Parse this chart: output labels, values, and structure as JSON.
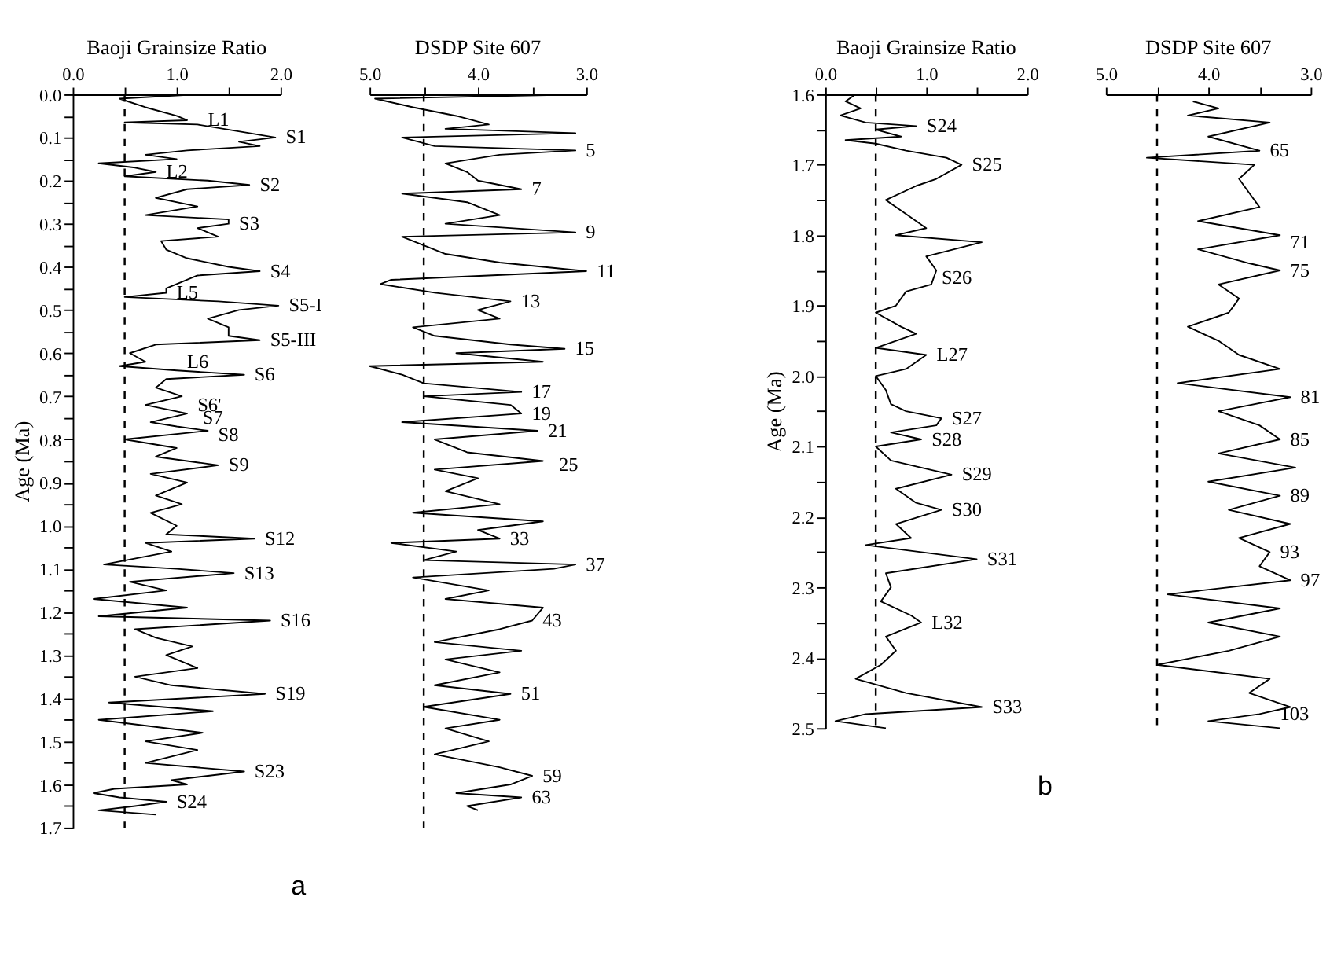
{
  "chart_data": [
    {
      "type": "line",
      "orientation": "horizontal",
      "title": "Baoji Grainsize Ratio",
      "ylabel": "Age (Ma)",
      "line_style": "solid",
      "grid": false,
      "xlim": [
        0,
        2
      ],
      "xticks": [
        {
          "value": 0,
          "label": "0.0"
        },
        {
          "value": 0.5,
          "label": null
        },
        {
          "value": 1,
          "label": "1.0"
        },
        {
          "value": 1.5,
          "label": null
        },
        {
          "value": 2,
          "label": "2.0"
        }
      ],
      "ylim": [
        1.7,
        0
      ],
      "yticks": [
        {
          "value": 0,
          "label": "0.0"
        },
        {
          "value": 0.05,
          "label": null
        },
        0.1,
        {
          "value": 0.15,
          "label": null
        },
        0.2,
        {
          "value": 0.25,
          "label": null
        },
        0.3,
        {
          "value": 0.35,
          "label": null
        },
        0.4,
        {
          "value": 0.45,
          "label": null
        },
        0.5,
        {
          "value": 0.55,
          "label": null
        },
        0.6,
        {
          "value": 0.65,
          "label": null
        },
        0.7,
        {
          "value": 0.75,
          "label": null
        },
        0.8,
        {
          "value": 0.85,
          "label": null
        },
        0.9,
        {
          "value": 0.95,
          "label": null
        },
        {
          "value": 1,
          "label": "1.0"
        },
        {
          "value": 1.05,
          "label": null
        },
        1.1,
        {
          "value": 1.15,
          "label": null
        },
        1.2,
        {
          "value": 1.25,
          "label": null
        },
        1.3,
        {
          "value": 1.35,
          "label": null
        },
        1.4,
        {
          "value": 1.45,
          "label": null
        },
        1.5,
        {
          "value": 1.55,
          "label": null
        },
        1.6,
        {
          "value": 1.65,
          "label": null
        },
        1.7
      ],
      "series": [
        {
          "color": "#000000",
          "x": [
            0.0,
            0.01,
            0.03,
            0.05,
            0.06,
            0.065,
            0.07,
            0.09,
            0.1,
            0.11,
            0.12,
            0.13,
            0.14,
            0.15,
            0.16,
            0.17,
            0.18,
            0.19,
            0.2,
            0.21,
            0.22,
            0.24,
            0.26,
            0.28,
            0.29,
            0.3,
            0.31,
            0.33,
            0.34,
            0.36,
            0.38,
            0.4,
            0.41,
            0.42,
            0.44,
            0.45,
            0.46,
            0.47,
            0.48,
            0.49,
            0.5,
            0.52,
            0.54,
            0.56,
            0.57,
            0.58,
            0.6,
            0.62,
            0.63,
            0.64,
            0.65,
            0.66,
            0.68,
            0.7,
            0.72,
            0.74,
            0.76,
            0.77,
            0.78,
            0.8,
            0.82,
            0.84,
            0.86,
            0.88,
            0.9,
            0.93,
            0.95,
            0.97,
            1.0,
            1.02,
            1.03,
            1.04,
            1.06,
            1.09,
            1.1,
            1.11,
            1.13,
            1.15,
            1.17,
            1.19,
            1.21,
            1.22,
            1.24,
            1.26,
            1.28,
            1.3,
            1.33,
            1.35,
            1.37,
            1.39,
            1.41,
            1.43,
            1.45,
            1.48,
            1.5,
            1.52,
            1.55,
            1.57,
            1.59,
            1.6,
            1.61,
            1.62,
            1.63,
            1.64,
            1.65,
            1.66,
            1.67
          ],
          "values": [
            1.2,
            0.45,
            0.7,
            1.0,
            1.1,
            0.5,
            1.2,
            1.7,
            1.95,
            1.6,
            1.8,
            1.1,
            0.7,
            1.0,
            0.25,
            0.6,
            0.8,
            0.5,
            1.3,
            1.7,
            1.1,
            0.8,
            1.2,
            0.7,
            1.5,
            1.5,
            1.2,
            1.4,
            0.85,
            0.9,
            1.1,
            1.5,
            1.8,
            1.2,
            1.0,
            0.9,
            0.9,
            0.5,
            1.4,
            1.98,
            1.6,
            1.3,
            1.5,
            1.5,
            1.8,
            0.8,
            0.55,
            0.7,
            0.45,
            1.0,
            1.65,
            0.9,
            0.8,
            1.05,
            0.7,
            1.1,
            0.75,
            1.0,
            1.3,
            0.5,
            1.0,
            0.8,
            1.4,
            0.75,
            1.1,
            0.8,
            1.05,
            0.75,
            1.0,
            0.9,
            1.75,
            0.7,
            0.95,
            0.3,
            1.0,
            1.55,
            0.55,
            0.9,
            0.2,
            1.1,
            0.25,
            1.9,
            0.6,
            0.8,
            1.15,
            0.9,
            1.2,
            0.6,
            0.95,
            1.85,
            0.35,
            1.35,
            0.25,
            1.25,
            0.7,
            1.2,
            0.7,
            1.65,
            0.95,
            1.1,
            0.4,
            0.2,
            0.45,
            0.9,
            0.6,
            0.25,
            0.8
          ]
        }
      ],
      "ref_lines": [
        {
          "axis": "x",
          "value": 0.5,
          "color": "#000000",
          "line_style": "dashed"
        }
      ],
      "annotations": [
        {
          "text": "L1",
          "x": 1.2,
          "y": 0.06
        },
        {
          "text": "S1",
          "x": 1.95,
          "y": 0.1
        },
        {
          "text": "L2",
          "x": 0.8,
          "y": 0.18
        },
        {
          "text": "S2",
          "x": 1.7,
          "y": 0.21
        },
        {
          "text": "S3",
          "x": 1.5,
          "y": 0.3
        },
        {
          "text": "S4",
          "x": 1.8,
          "y": 0.41
        },
        {
          "text": "L5",
          "x": 0.9,
          "y": 0.46
        },
        {
          "text": "S5-I",
          "x": 1.98,
          "y": 0.49
        },
        {
          "text": "S5-III",
          "x": 1.8,
          "y": 0.57
        },
        {
          "text": "L6",
          "x": 1.0,
          "y": 0.62
        },
        {
          "text": "S6",
          "x": 1.65,
          "y": 0.65
        },
        {
          "text": "S6'",
          "x": 1.1,
          "y": 0.72
        },
        {
          "text": "S7",
          "x": 1.15,
          "y": 0.75
        },
        {
          "text": "S8",
          "x": 1.3,
          "y": 0.79
        },
        {
          "text": "S9",
          "x": 1.4,
          "y": 0.86
        },
        {
          "text": "S12",
          "x": 1.75,
          "y": 1.03
        },
        {
          "text": "S13",
          "x": 1.55,
          "y": 1.11
        },
        {
          "text": "S16",
          "x": 1.9,
          "y": 1.22
        },
        {
          "text": "S19",
          "x": 1.85,
          "y": 1.39
        },
        {
          "text": "S23",
          "x": 1.65,
          "y": 1.57
        },
        {
          "text": "S24",
          "x": 0.9,
          "y": 1.64
        },
        "a"
      ]
    },
    {
      "type": "line",
      "orientation": "horizontal",
      "title": "DSDP Site 607",
      "line_style": "solid",
      "grid": false,
      "tick_labels": "x",
      "xlim": [
        5,
        3
      ],
      "xticks": [
        {
          "value": 5,
          "label": "5.0"
        },
        {
          "value": 4.5,
          "label": null
        },
        {
          "value": 4,
          "label": "4.0"
        },
        {
          "value": 3.5,
          "label": null
        },
        {
          "value": 3,
          "label": "3.0"
        }
      ],
      "ylim": [
        1.7,
        0
      ],
      "series": [
        {
          "color": "#000000",
          "x": [
            0.0,
            0.01,
            0.03,
            0.05,
            0.07,
            0.08,
            0.09,
            0.1,
            0.12,
            0.13,
            0.14,
            0.16,
            0.18,
            0.2,
            0.22,
            0.23,
            0.25,
            0.28,
            0.3,
            0.32,
            0.33,
            0.35,
            0.37,
            0.39,
            0.41,
            0.43,
            0.44,
            0.46,
            0.48,
            0.5,
            0.52,
            0.54,
            0.56,
            0.58,
            0.59,
            0.6,
            0.62,
            0.63,
            0.65,
            0.67,
            0.69,
            0.7,
            0.72,
            0.74,
            0.76,
            0.78,
            0.8,
            0.83,
            0.85,
            0.87,
            0.89,
            0.92,
            0.95,
            0.97,
            0.99,
            1.01,
            1.03,
            1.04,
            1.06,
            1.08,
            1.09,
            1.1,
            1.12,
            1.15,
            1.17,
            1.19,
            1.22,
            1.24,
            1.27,
            1.29,
            1.31,
            1.34,
            1.37,
            1.39,
            1.42,
            1.45,
            1.47,
            1.5,
            1.53,
            1.56,
            1.58,
            1.6,
            1.62,
            1.63,
            1.65,
            1.66
          ],
          "values": [
            3.0,
            4.95,
            4.6,
            4.2,
            3.9,
            4.3,
            3.1,
            4.7,
            4.4,
            3.1,
            3.8,
            4.3,
            4.1,
            4.0,
            3.6,
            4.7,
            4.1,
            3.8,
            4.3,
            3.1,
            4.7,
            4.5,
            4.3,
            3.8,
            3.0,
            4.8,
            4.9,
            4.4,
            3.7,
            4.0,
            3.8,
            4.6,
            4.4,
            3.7,
            3.2,
            4.2,
            3.4,
            5.0,
            4.7,
            4.5,
            3.6,
            4.5,
            3.7,
            3.6,
            4.7,
            3.45,
            4.4,
            4.1,
            3.4,
            4.4,
            4.0,
            4.3,
            3.8,
            4.6,
            3.4,
            4.0,
            3.8,
            4.8,
            4.2,
            4.5,
            3.1,
            3.3,
            4.6,
            3.9,
            4.3,
            3.4,
            3.5,
            3.8,
            4.4,
            3.6,
            4.3,
            3.8,
            4.4,
            3.7,
            4.5,
            3.8,
            4.3,
            3.9,
            4.4,
            3.8,
            3.5,
            3.7,
            4.2,
            3.6,
            4.1,
            4.0
          ]
        }
      ],
      "ref_lines": [
        {
          "axis": "x",
          "value": 4.5,
          "color": "#000000",
          "line_style": "dashed"
        }
      ],
      "annotations": [
        {
          "text": "5",
          "x": 3.1,
          "y": 0.13
        },
        {
          "text": "7",
          "x": 3.6,
          "y": 0.22
        },
        {
          "text": "9",
          "x": 3.1,
          "y": 0.32
        },
        {
          "text": "11",
          "x": 3.0,
          "y": 0.41
        },
        {
          "text": "13",
          "x": 3.7,
          "y": 0.48
        },
        {
          "text": "15",
          "x": 3.2,
          "y": 0.59
        },
        {
          "text": "17",
          "x": 3.6,
          "y": 0.69
        },
        {
          "text": "19",
          "x": 3.6,
          "y": 0.74
        },
        {
          "text": "21",
          "x": 3.45,
          "y": 0.78
        },
        {
          "text": "25",
          "x": 3.35,
          "y": 0.86
        },
        {
          "text": "33",
          "x": 3.8,
          "y": 1.03
        },
        {
          "text": "37",
          "x": 3.1,
          "y": 1.09
        },
        {
          "text": "43",
          "x": 3.5,
          "y": 1.22
        },
        {
          "text": "51",
          "x": 3.7,
          "y": 1.39
        },
        {
          "text": "59",
          "x": 3.5,
          "y": 1.58
        },
        {
          "text": "63",
          "x": 3.6,
          "y": 1.63
        }
      ]
    },
    {
      "type": "line",
      "orientation": "horizontal",
      "title": "Baoji Grainsize Ratio",
      "ylabel": "Age (Ma)",
      "line_style": "solid",
      "grid": false,
      "xlim": [
        0,
        2
      ],
      "xticks": [
        {
          "value": 0,
          "label": "0.0"
        },
        {
          "value": 0.5,
          "label": null
        },
        {
          "value": 1,
          "label": "1.0"
        },
        {
          "value": 1.5,
          "label": null
        },
        {
          "value": 2,
          "label": "2.0"
        }
      ],
      "ylim": [
        2.5,
        1.6
      ],
      "yticks": [
        1.6,
        {
          "value": 1.65,
          "label": null
        },
        1.7,
        {
          "value": 1.75,
          "label": null
        },
        1.8,
        {
          "value": 1.85,
          "label": null
        },
        1.9,
        {
          "value": 1.95,
          "label": null
        },
        {
          "value": 2,
          "label": "2.0"
        },
        {
          "value": 2.05,
          "label": null
        },
        2.1,
        {
          "value": 2.15,
          "label": null
        },
        2.2,
        {
          "value": 2.25,
          "label": null
        },
        2.3,
        {
          "value": 2.35,
          "label": null
        },
        2.4,
        {
          "value": 2.45,
          "label": null
        },
        2.5
      ],
      "series": [
        {
          "color": "#000000",
          "x": [
            1.6,
            1.61,
            1.62,
            1.63,
            1.64,
            1.645,
            1.65,
            1.66,
            1.665,
            1.67,
            1.68,
            1.69,
            1.7,
            1.72,
            1.73,
            1.75,
            1.77,
            1.79,
            1.8,
            1.81,
            1.83,
            1.85,
            1.87,
            1.88,
            1.9,
            1.91,
            1.93,
            1.94,
            1.96,
            1.97,
            1.99,
            2.0,
            2.02,
            2.04,
            2.05,
            2.06,
            2.07,
            2.08,
            2.09,
            2.1,
            2.12,
            2.14,
            2.16,
            2.18,
            2.19,
            2.21,
            2.23,
            2.24,
            2.26,
            2.28,
            2.3,
            2.32,
            2.34,
            2.35,
            2.37,
            2.39,
            2.41,
            2.43,
            2.45,
            2.47,
            2.48,
            2.49,
            2.5
          ],
          "values": [
            0.3,
            0.2,
            0.35,
            0.15,
            0.4,
            0.9,
            0.5,
            0.75,
            0.2,
            0.5,
            0.8,
            1.2,
            1.35,
            1.1,
            0.9,
            0.6,
            0.8,
            1.0,
            0.7,
            1.55,
            1.0,
            1.1,
            1.05,
            0.8,
            0.7,
            0.5,
            0.75,
            0.9,
            0.5,
            1.0,
            0.8,
            0.5,
            0.6,
            0.65,
            0.8,
            1.15,
            1.1,
            0.65,
            0.95,
            0.5,
            0.65,
            1.25,
            0.7,
            0.9,
            1.15,
            0.7,
            0.85,
            0.4,
            1.5,
            0.6,
            0.65,
            0.55,
            0.85,
            0.95,
            0.6,
            0.7,
            0.55,
            0.3,
            0.8,
            1.55,
            0.4,
            0.1,
            0.6
          ]
        }
      ],
      "ref_lines": [
        {
          "axis": "x",
          "value": 0.5,
          "color": "#000000",
          "line_style": "dashed"
        }
      ],
      "annotations": [
        {
          "text": "S24",
          "x": 0.9,
          "y": 1.645
        },
        {
          "text": "S25",
          "x": 1.35,
          "y": 1.7
        },
        {
          "text": "S26",
          "x": 1.05,
          "y": 1.86
        },
        {
          "text": "L27",
          "x": 1.0,
          "y": 1.97
        },
        {
          "text": "S27",
          "x": 1.15,
          "y": 2.06
        },
        {
          "text": "S28",
          "x": 0.95,
          "y": 2.09
        },
        {
          "text": "S29",
          "x": 1.25,
          "y": 2.14
        },
        {
          "text": "S30",
          "x": 1.15,
          "y": 2.19
        },
        {
          "text": "S31",
          "x": 1.5,
          "y": 2.26
        },
        {
          "text": "L32",
          "x": 0.95,
          "y": 2.35
        },
        {
          "text": "S33",
          "x": 1.55,
          "y": 2.47
        },
        "b"
      ]
    },
    {
      "type": "line",
      "orientation": "horizontal",
      "title": "DSDP Site 607",
      "line_style": "solid",
      "grid": false,
      "tick_labels": "x",
      "xlim": [
        5,
        3
      ],
      "xticks": [
        {
          "value": 5,
          "label": "5.0"
        },
        {
          "value": 4.5,
          "label": null
        },
        {
          "value": 4,
          "label": "4.0"
        },
        {
          "value": 3.5,
          "label": null
        },
        {
          "value": 3,
          "label": "3.0"
        }
      ],
      "ylim": [
        2.5,
        1.6
      ],
      "series": [
        {
          "color": "#000000",
          "x": [
            1.61,
            1.62,
            1.63,
            1.64,
            1.66,
            1.68,
            1.69,
            1.7,
            1.72,
            1.74,
            1.76,
            1.78,
            1.8,
            1.82,
            1.84,
            1.85,
            1.87,
            1.89,
            1.91,
            1.93,
            1.95,
            1.97,
            1.99,
            2.01,
            2.03,
            2.05,
            2.07,
            2.09,
            2.11,
            2.13,
            2.15,
            2.17,
            2.19,
            2.21,
            2.23,
            2.25,
            2.27,
            2.29,
            2.31,
            2.33,
            2.35,
            2.37,
            2.39,
            2.41,
            2.43,
            2.45,
            2.47,
            2.48,
            2.49,
            2.5
          ],
          "values": [
            4.15,
            3.9,
            4.2,
            3.4,
            4.0,
            3.5,
            4.6,
            3.55,
            3.7,
            3.6,
            3.5,
            4.1,
            3.3,
            4.1,
            3.6,
            3.3,
            3.9,
            3.7,
            3.8,
            4.2,
            3.9,
            3.7,
            3.3,
            4.3,
            3.2,
            3.9,
            3.5,
            3.3,
            3.9,
            3.15,
            4.0,
            3.3,
            3.8,
            3.2,
            3.7,
            3.4,
            3.5,
            3.2,
            4.4,
            3.3,
            4.0,
            3.3,
            3.8,
            4.5,
            3.4,
            3.6,
            3.2,
            3.5,
            4.0,
            3.3
          ]
        }
      ],
      "ref_lines": [
        {
          "axis": "x",
          "value": 4.5,
          "color": "#000000",
          "line_style": "dashed"
        }
      ],
      "annotations": [
        {
          "text": "65",
          "x": 3.5,
          "y": 1.68
        },
        {
          "text": "71",
          "x": 3.3,
          "y": 1.81
        },
        {
          "text": "75",
          "x": 3.3,
          "y": 1.85
        },
        {
          "text": "81",
          "x": 3.2,
          "y": 2.03
        },
        {
          "text": "85",
          "x": 3.3,
          "y": 2.09
        },
        {
          "text": "89",
          "x": 3.3,
          "y": 2.17
        },
        {
          "text": "93",
          "x": 3.4,
          "y": 2.25
        },
        {
          "text": "97",
          "x": 3.2,
          "y": 2.29
        },
        {
          "text": "103",
          "x": 3.4,
          "y": 2.48
        }
      ]
    }
  ]
}
